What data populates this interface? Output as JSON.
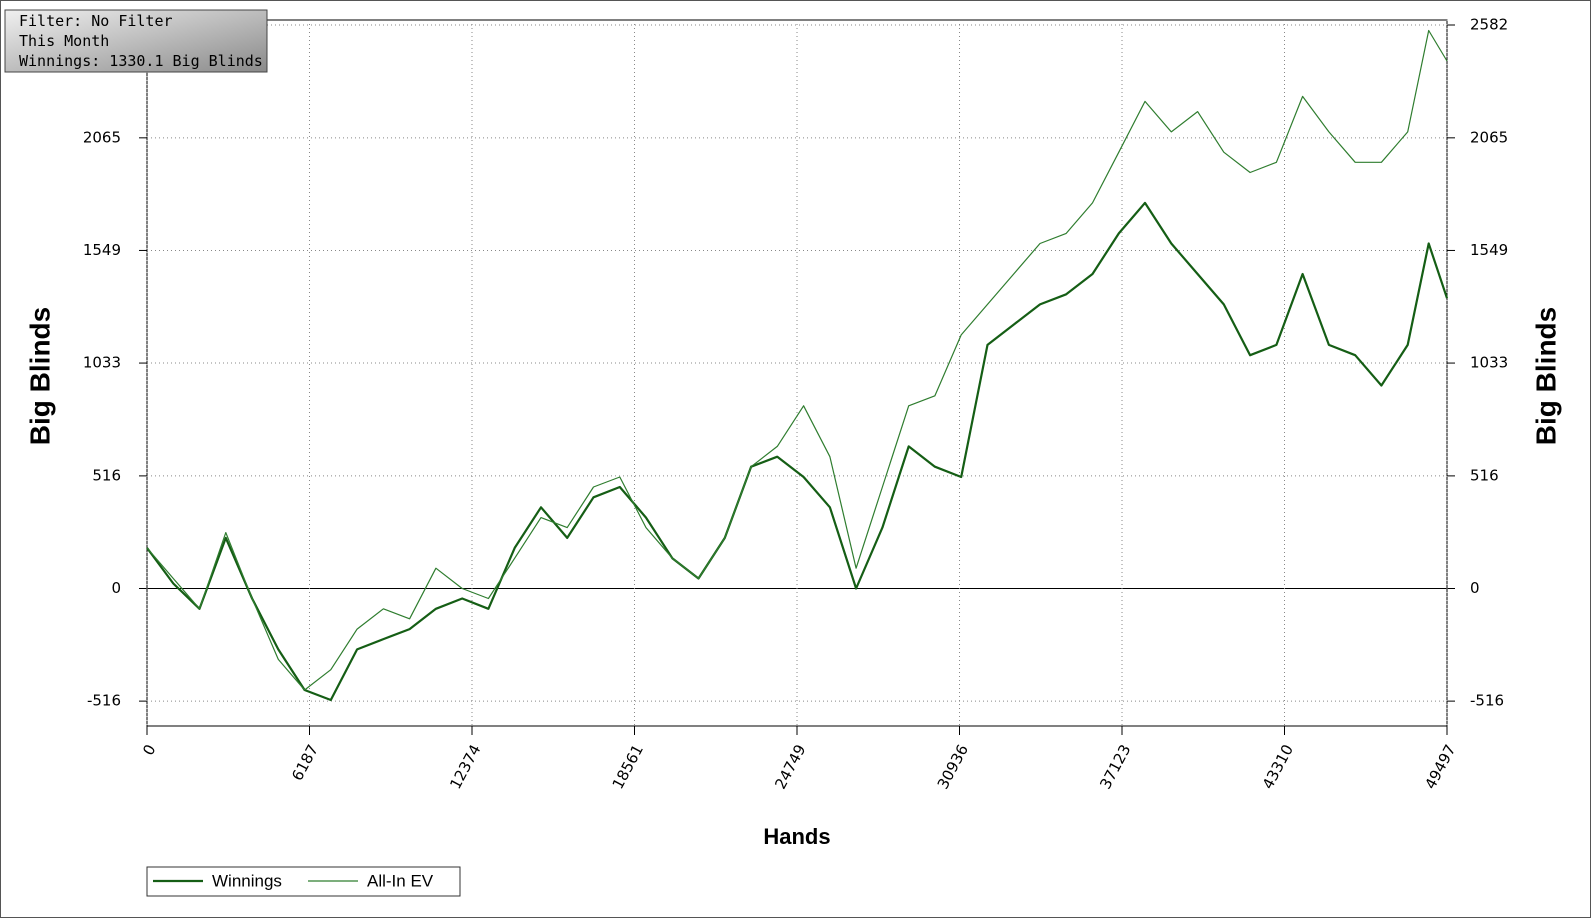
{
  "chart_data": {
    "type": "line",
    "annotations": [
      "Filter: No Filter",
      "This Month",
      "Winnings: 1330.1 Big Blinds"
    ],
    "xlabel": "Hands",
    "ylabel": "Big Blinds",
    "y2label": "Big Blinds",
    "x": [
      0,
      1000,
      2000,
      3000,
      4000,
      5000,
      6000,
      7000,
      8000,
      9000,
      10000,
      11000,
      12000,
      13000,
      14000,
      15000,
      16000,
      17000,
      18000,
      19000,
      20000,
      21000,
      22000,
      23000,
      24000,
      25000,
      26000,
      27000,
      28000,
      29000,
      30000,
      31000,
      32000,
      33000,
      34000,
      35000,
      36000,
      37000,
      38000,
      39000,
      40000,
      41000,
      42000,
      43000,
      44000,
      45000,
      46000,
      47000,
      48000,
      48800,
      49497
    ],
    "series": [
      {
        "name": "Winnings",
        "color": "#155e15",
        "values": [
          186,
          23,
          -93,
          232,
          -46,
          -279,
          -465,
          -511,
          -279,
          -232,
          -186,
          -93,
          -46,
          -93,
          186,
          372,
          232,
          418,
          465,
          325,
          139,
          46,
          232,
          558,
          604,
          511,
          372,
          0,
          279,
          651,
          558,
          511,
          1116,
          1209,
          1302,
          1348,
          1441,
          1627,
          1767,
          1581,
          1441,
          1302,
          1069,
          1116,
          1441,
          1116,
          1069,
          930,
          1116,
          1581,
          1330.1
        ]
      },
      {
        "name": "All-In EV",
        "color": "#2f7d2f",
        "values": [
          186,
          46,
          -93,
          256,
          -46,
          -325,
          -465,
          -372,
          -186,
          -93,
          -139,
          93,
          0,
          -46,
          139,
          325,
          279,
          465,
          511,
          279,
          139,
          46,
          232,
          558,
          651,
          837,
          604,
          93,
          465,
          837,
          883,
          1162,
          1302,
          1441,
          1581,
          1627,
          1767,
          1999,
          2232,
          2092,
          2185,
          1999,
          1906,
          1953,
          2255,
          2092,
          1953,
          1953,
          2092,
          2557,
          2417
        ]
      }
    ],
    "xlim": [
      0,
      49497
    ],
    "xticks": [
      0,
      6187,
      12374,
      18561,
      24749,
      30936,
      37123,
      43310,
      49497
    ],
    "ylim": [
      -630,
      2582
    ],
    "yticks": [
      -516,
      0,
      516,
      1033,
      1549,
      2065,
      2582
    ],
    "y2lim": [
      -630,
      2582
    ],
    "y2ticks": [
      -516,
      0,
      516,
      1033,
      1549,
      2065,
      2582
    ],
    "grid": true,
    "legend": "bottom-left"
  }
}
